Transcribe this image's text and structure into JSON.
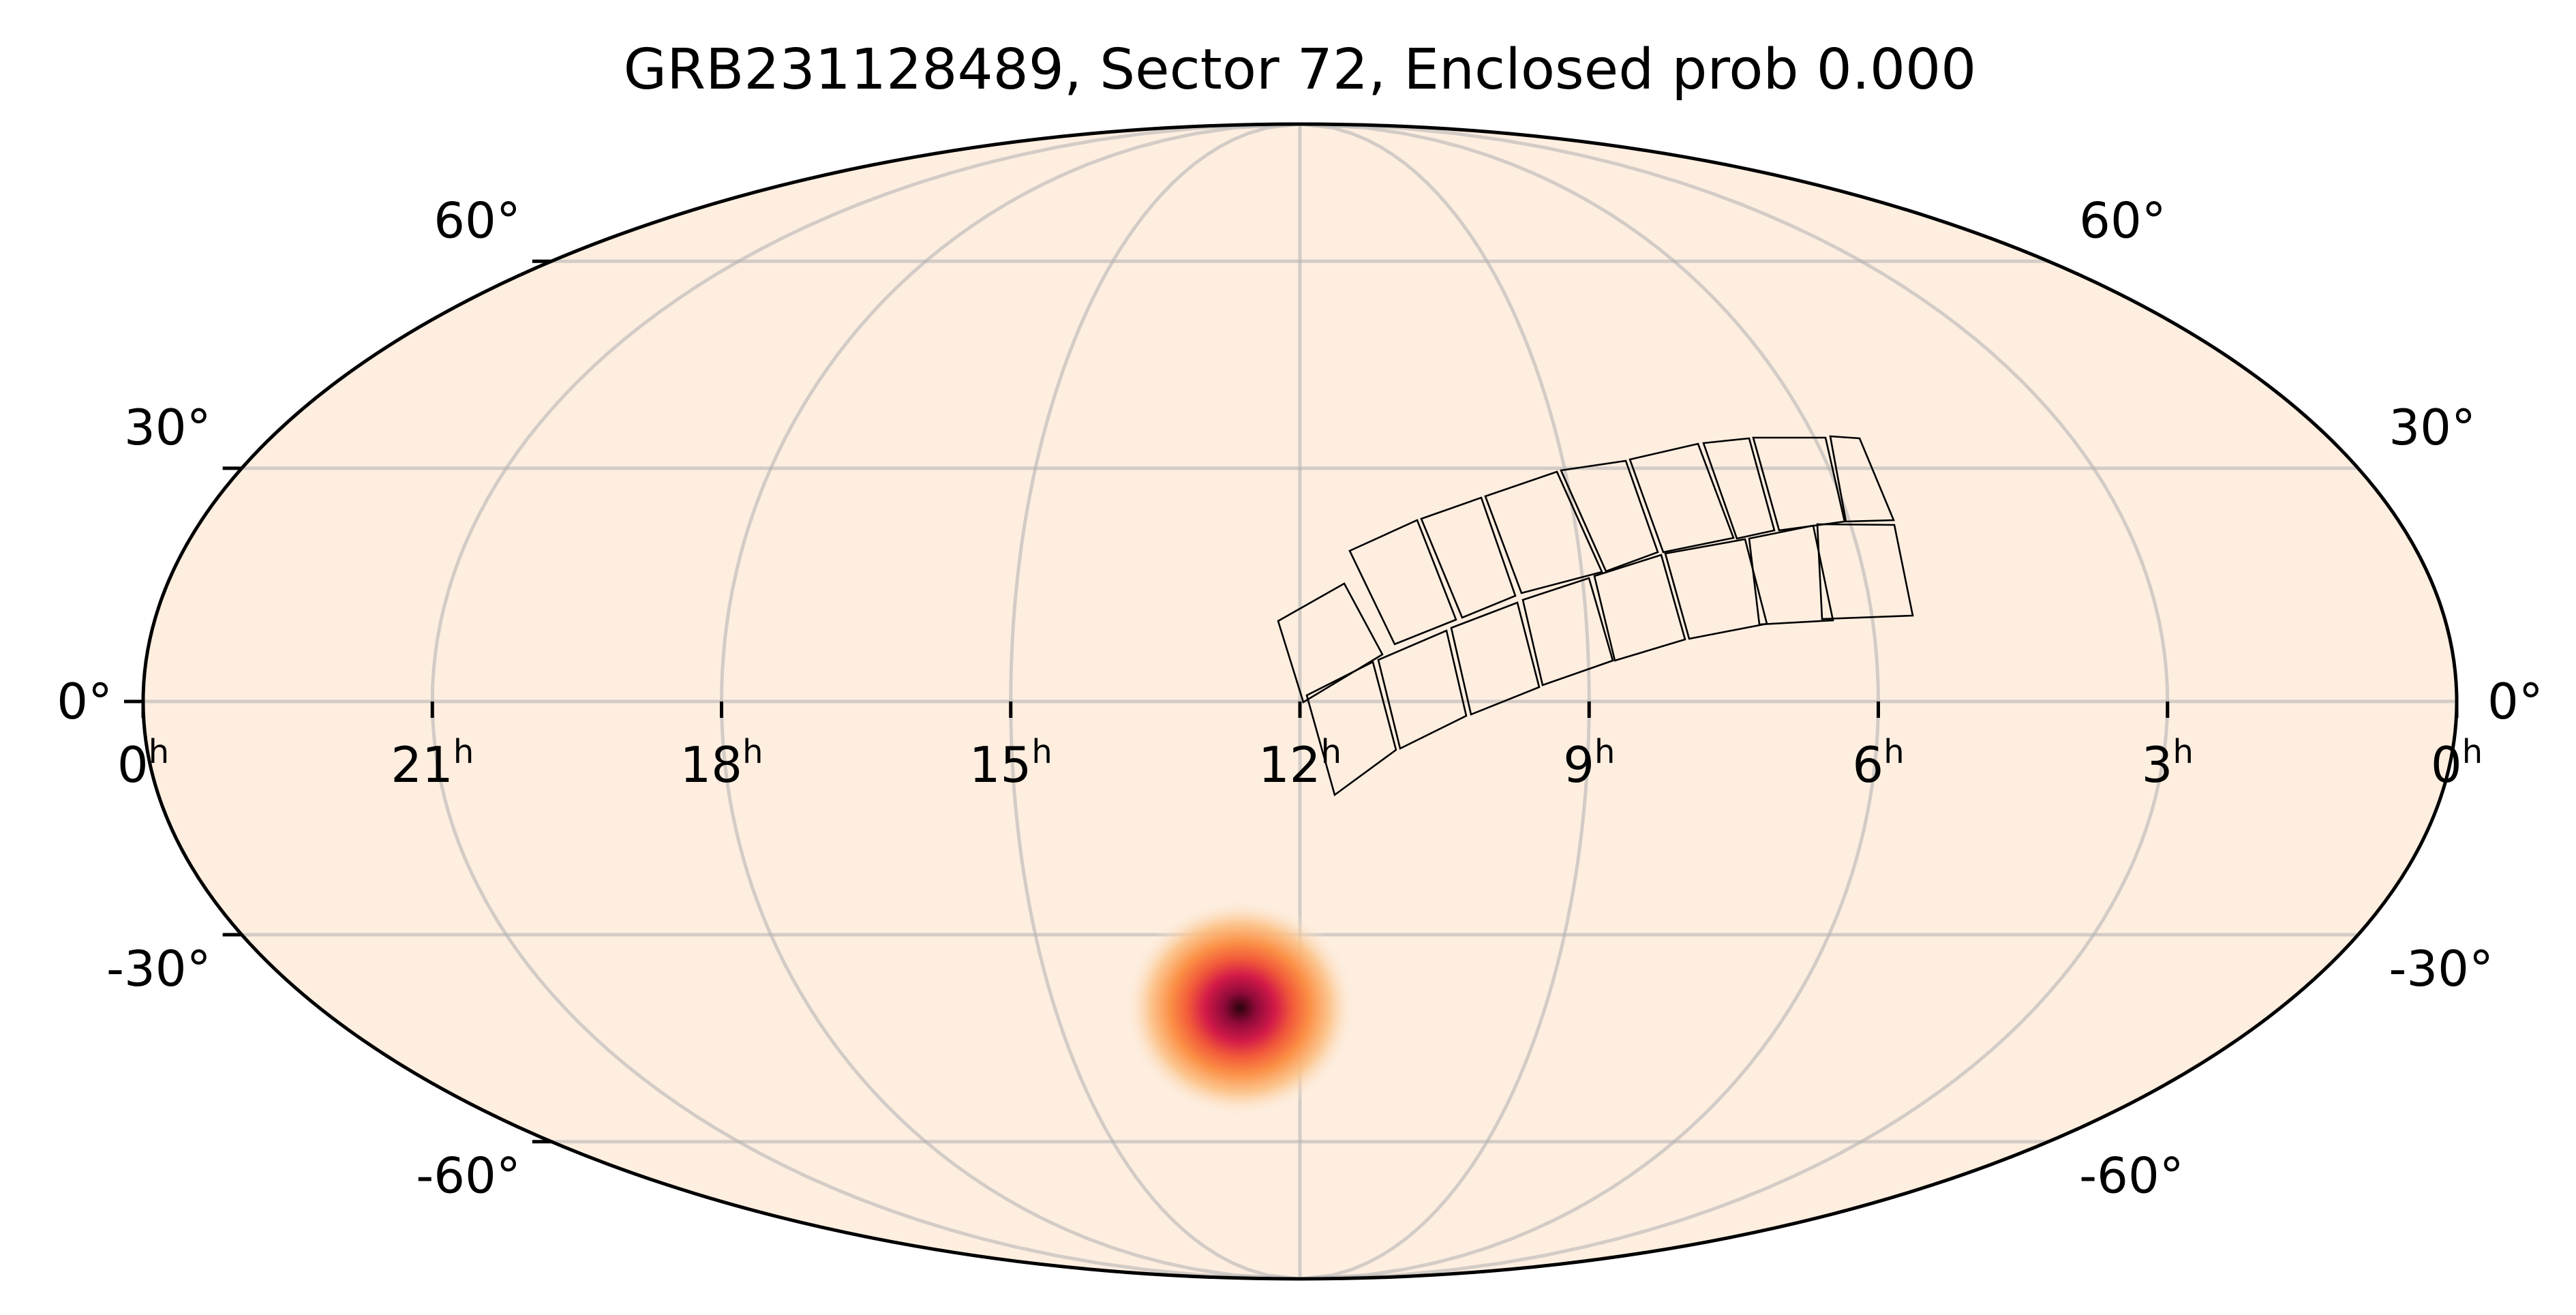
{
  "title": "GRB231128489, Sector 72, Enclosed prob 0.000",
  "projection": "mollweide",
  "background_color": "#fdeee0",
  "grid_color": "#b0b0b0",
  "ra_ticks": [
    {
      "label": "0",
      "sup": "h",
      "ra": 360
    },
    {
      "label": "21",
      "sup": "h",
      "ra": 315
    },
    {
      "label": "18",
      "sup": "h",
      "ra": 270
    },
    {
      "label": "15",
      "sup": "h",
      "ra": 225
    },
    {
      "label": "12",
      "sup": "h",
      "ra": 180
    },
    {
      "label": "9",
      "sup": "h",
      "ra": 135
    },
    {
      "label": "6",
      "sup": "h",
      "ra": 90
    },
    {
      "label": "3",
      "sup": "h",
      "ra": 45
    },
    {
      "label": "0",
      "sup": "h",
      "ra": 0
    }
  ],
  "dec_ticks": [
    {
      "label": "60°",
      "dec": 60
    },
    {
      "label": "30°",
      "dec": 30
    },
    {
      "label": "0°",
      "dec": 0
    },
    {
      "label": "-30°",
      "dec": -30
    },
    {
      "label": "-60°",
      "dec": -60
    }
  ],
  "probability_blob": {
    "ra": 191,
    "dec": -40,
    "colormap": [
      "#fdeee0",
      "#fcc288",
      "#fb8f45",
      "#f25a3a",
      "#d21a48",
      "#8e0a3a",
      "#2a0208"
    ]
  }
}
